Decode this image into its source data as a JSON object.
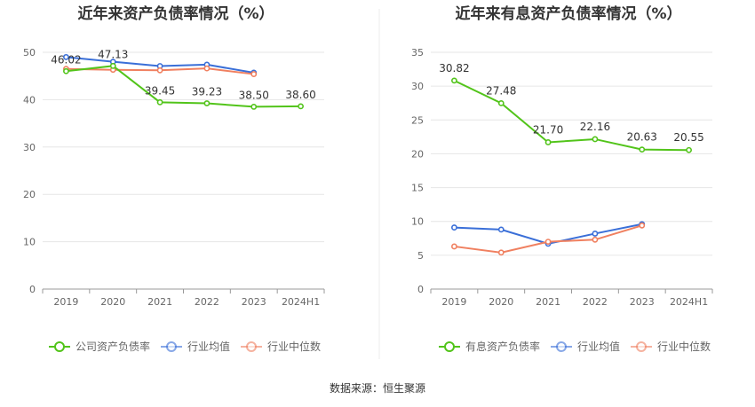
{
  "source_note": "数据来源：恒生聚源",
  "chart_data": [
    {
      "type": "line",
      "title": "近年来资产负债率情况（%）",
      "categories": [
        "2019",
        "2020",
        "2021",
        "2022",
        "2023",
        "2024H1"
      ],
      "ylim": [
        0,
        50
      ],
      "yticks": [
        0,
        10,
        20,
        30,
        40,
        50
      ],
      "ytick_labels": [
        "0",
        "10",
        "20",
        "30",
        "40",
        "50"
      ],
      "grid": true,
      "legend_position": "bottom",
      "series": [
        {
          "name": "公司资产负债率",
          "color": "#52c41a",
          "values": [
            46.02,
            47.13,
            39.45,
            39.23,
            38.5,
            38.6
          ],
          "labels": [
            "46.02",
            "47.13",
            "39.45",
            "39.23",
            "38.50",
            "38.60"
          ]
        },
        {
          "name": "行业均值",
          "color": "#3a6fd8",
          "values": [
            49.0,
            48.0,
            47.1,
            47.4,
            45.7,
            null
          ]
        },
        {
          "name": "行业中位数",
          "color": "#f08060",
          "values": [
            46.5,
            46.3,
            46.2,
            46.6,
            45.4,
            null
          ]
        }
      ]
    },
    {
      "type": "line",
      "title": "近年来有息资产负债率情况（%）",
      "categories": [
        "2019",
        "2020",
        "2021",
        "2022",
        "2023",
        "2024H1"
      ],
      "ylim": [
        0,
        35
      ],
      "yticks": [
        0,
        5,
        10,
        15,
        20,
        25,
        30,
        35
      ],
      "ytick_labels": [
        "0",
        "5",
        "10",
        "15",
        "20",
        "25",
        "30",
        "35"
      ],
      "grid": true,
      "legend_position": "bottom",
      "series": [
        {
          "name": "有息资产负债率",
          "color": "#52c41a",
          "values": [
            30.82,
            27.48,
            21.7,
            22.16,
            20.63,
            20.55
          ],
          "labels": [
            "30.82",
            "27.48",
            "21.70",
            "22.16",
            "20.63",
            "20.55"
          ]
        },
        {
          "name": "行业均值",
          "color": "#3a6fd8",
          "values": [
            9.1,
            8.8,
            6.7,
            8.2,
            9.6,
            null
          ]
        },
        {
          "name": "行业中位数",
          "color": "#f08060",
          "values": [
            6.3,
            5.4,
            7.0,
            7.3,
            9.4,
            null
          ]
        }
      ]
    }
  ]
}
